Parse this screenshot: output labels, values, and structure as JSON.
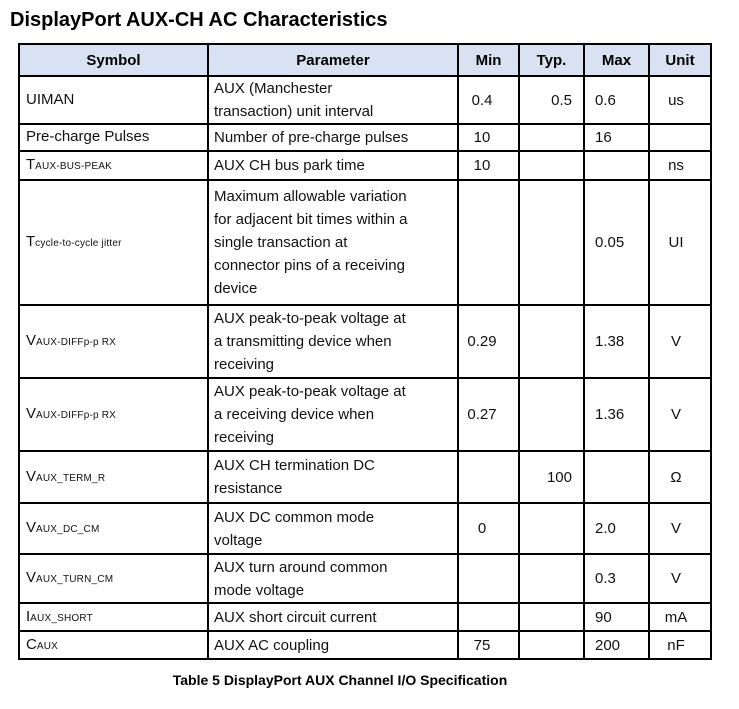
{
  "title": "DisplayPort AUX-CH AC Characteristics",
  "caption": "Table 5 DisplayPort AUX Channel I/O Specification",
  "colors": {
    "header_background": "#d9e2f3",
    "border": "#000000",
    "text": "#111111"
  },
  "table": {
    "columns": [
      "Symbol",
      "Parameter",
      "Min",
      "Typ.",
      "Max",
      "Unit"
    ],
    "rows": [
      {
        "symbol_main": "UIMAN",
        "symbol_sub": "",
        "parameter": "AUX (Manchester\ntransaction) unit interval",
        "min": "0.4",
        "typ": "0.5",
        "max": "0.6",
        "unit": "us"
      },
      {
        "symbol_main": "Pre-charge Pulses",
        "symbol_sub": "",
        "parameter": "Number of pre-charge pulses",
        "min": "10",
        "typ": "",
        "max": "16",
        "unit": ""
      },
      {
        "symbol_main": "T",
        "symbol_sub": "AUX-BUS-PEAK",
        "parameter": "AUX CH bus park time",
        "min": "10",
        "typ": "",
        "max": "",
        "unit": "ns"
      },
      {
        "symbol_main": "T",
        "symbol_sub": "cycle-to-cycle jitter",
        "parameter": "Maximum allowable variation\nfor adjacent bit times within a\nsingle transaction at\nconnector pins of a receiving\ndevice",
        "min": "",
        "typ": "",
        "max": "0.05",
        "unit": "UI"
      },
      {
        "symbol_main": "V",
        "symbol_sub": "AUX-DIFFp-p RX",
        "parameter": "AUX peak-to-peak voltage at\na transmitting device when\nreceiving",
        "min": "0.29",
        "typ": "",
        "max": "1.38",
        "unit": "V"
      },
      {
        "symbol_main": "V",
        "symbol_sub": "AUX-DIFFp-p RX",
        "parameter": "AUX peak-to-peak voltage at\na receiving device when\nreceiving",
        "min": "0.27",
        "typ": "",
        "max": "1.36",
        "unit": "V"
      },
      {
        "symbol_main": "V",
        "symbol_sub": "AUX_TERM_R",
        "parameter": "AUX CH termination DC\nresistance",
        "min": "",
        "typ": "100",
        "max": "",
        "unit": "Ω"
      },
      {
        "symbol_main": "V",
        "symbol_sub": "AUX_DC_CM",
        "parameter": "AUX DC common mode\nvoltage",
        "min": "0",
        "typ": "",
        "max": "2.0",
        "unit": "V"
      },
      {
        "symbol_main": "V",
        "symbol_sub": "AUX_TURN_CM",
        "parameter": "AUX turn around common\nmode voltage",
        "min": "",
        "typ": "",
        "max": "0.3",
        "unit": "V"
      },
      {
        "symbol_main": "I",
        "symbol_sub": "AUX_SHORT",
        "parameter": "AUX short circuit current",
        "min": "",
        "typ": "",
        "max": "90",
        "unit": "mA"
      },
      {
        "symbol_main": "C",
        "symbol_sub": "AUX",
        "parameter": "AUX AC coupling",
        "min": "75",
        "typ": "",
        "max": "200",
        "unit": "nF"
      }
    ]
  }
}
